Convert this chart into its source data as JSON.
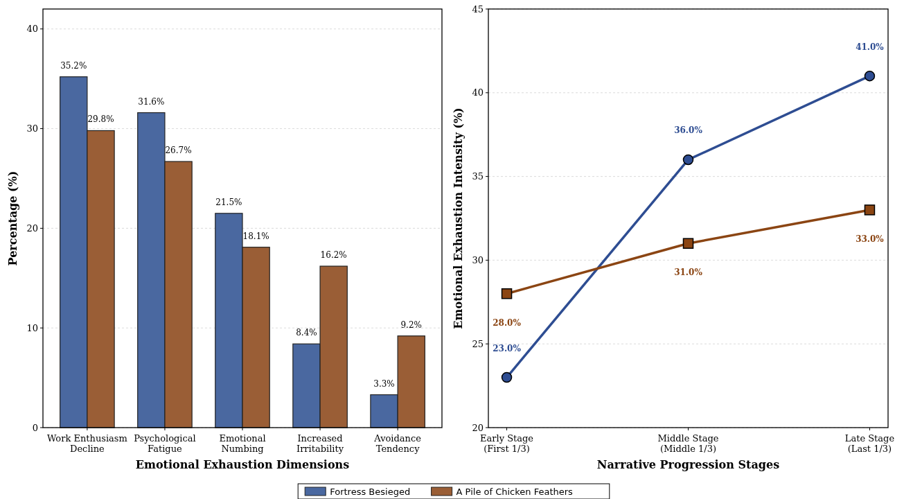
{
  "chart_data": [
    {
      "type": "bar",
      "xlabel": "Emotional Exhaustion Dimensions",
      "ylabel": "Percentage (%)",
      "categories": [
        "Work Enthusiasm\nDecline",
        "Psychological\nFatigue",
        "Emotional\nNumbing",
        "Increased\nIrritability",
        "Avoidance\nTendency"
      ],
      "series": [
        {
          "name": "Fortress Besieged",
          "color": "#4a68a0",
          "values": [
            35.2,
            31.6,
            21.5,
            8.4,
            3.3
          ],
          "value_labels": [
            "35.2%",
            "31.6%",
            "21.5%",
            "8.4%",
            "3.3%"
          ]
        },
        {
          "name": "A Pile of Chicken Feathers",
          "color": "#9a5e36",
          "values": [
            29.8,
            26.7,
            18.1,
            16.2,
            9.2
          ],
          "value_labels": [
            "29.8%",
            "26.7%",
            "18.1%",
            "16.2%",
            "9.2%"
          ]
        }
      ],
      "ylim": [
        0,
        42
      ],
      "yticks": [
        0,
        10,
        20,
        30,
        40
      ],
      "grid": "y",
      "legend": "bottom"
    },
    {
      "type": "line",
      "xlabel": "Narrative Progression Stages",
      "ylabel": "Emotional Exhaustion Intensity (%)",
      "categories": [
        "Early Stage\n(First 1/3)",
        "Middle Stage\n(Middle 1/3)",
        "Late Stage\n(Last 1/3)"
      ],
      "series": [
        {
          "color": "#2e4d92",
          "values": [
            23,
            36,
            41
          ],
          "value_labels": [
            "23.0%",
            "36.0%",
            "41.0%"
          ],
          "marker": "circle"
        },
        {
          "color": "#8b4513",
          "values": [
            28,
            31,
            33
          ],
          "value_labels": [
            "28.0%",
            "31.0%",
            "33.0%"
          ],
          "marker": "square"
        }
      ],
      "ylim": [
        20,
        45
      ],
      "yticks": [
        20,
        25,
        30,
        35,
        40,
        45
      ],
      "grid": "y"
    }
  ]
}
